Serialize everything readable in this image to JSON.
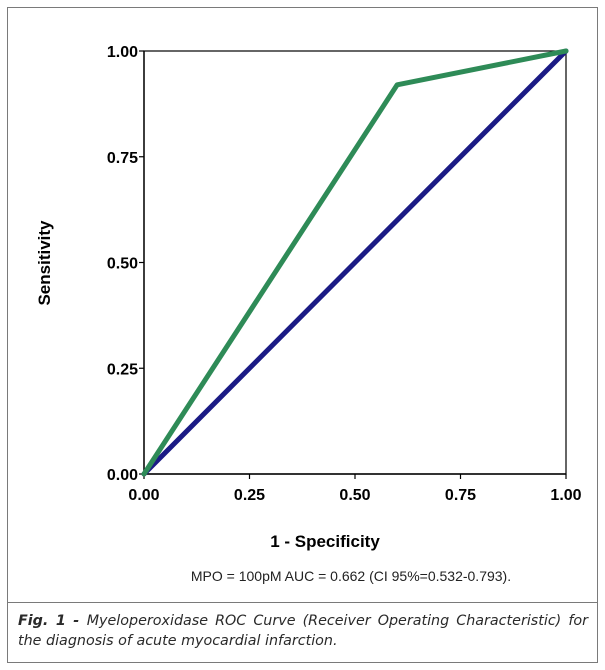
{
  "chart_data": {
    "type": "line",
    "xlabel": "1 - Specificity",
    "ylabel": "Sensitivity",
    "xlim": [
      0,
      1
    ],
    "ylim": [
      0,
      1
    ],
    "x_ticks": [
      "0.00",
      "0.25",
      "0.50",
      "0.75",
      "1.00"
    ],
    "y_ticks": [
      "0.00",
      "0.25",
      "0.50",
      "0.75",
      "1.00"
    ],
    "grid": false,
    "legend": "none",
    "series": [
      {
        "color": "#2e8b57",
        "x": [
          0,
          0.6,
          1.0
        ],
        "y": [
          0,
          0.92,
          1.0
        ]
      },
      {
        "color": "#1b1b85",
        "x": [
          0,
          1.0
        ],
        "y": [
          0,
          1.0
        ]
      }
    ],
    "annotation": "MPO = 100pM AUC = 0.662 (CI 95%=0.532-0.793)."
  },
  "caption": {
    "label": "Fig. 1 - ",
    "text": "Myeloperoxidase ROC Curve (Receiver Operating Characteristic) for the diagnosis of acute myocardial infarction."
  }
}
